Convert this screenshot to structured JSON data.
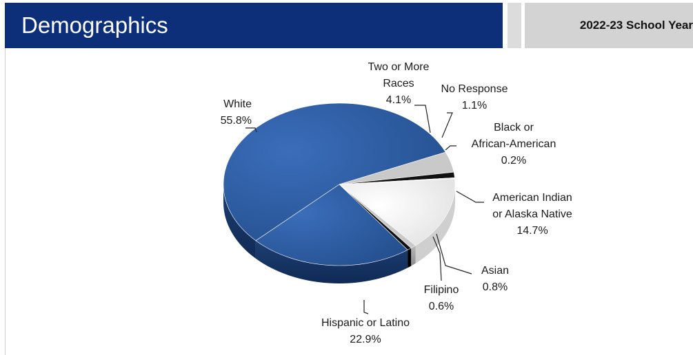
{
  "header": {
    "title": "Demographics",
    "year": "2022-23 School Year"
  },
  "chart_data": {
    "type": "pie",
    "title": "",
    "slices": [
      {
        "label": "American Indian or Alaska Native",
        "value": 14.7,
        "display": "14.7%",
        "color": "#f5f5f5"
      },
      {
        "label": "Asian",
        "value": 0.8,
        "display": "0.8%",
        "color": "#c9c9c9"
      },
      {
        "label": "Filipino",
        "value": 0.6,
        "display": "0.6%",
        "color": "#111111"
      },
      {
        "label": "Hispanic or Latino",
        "value": 22.9,
        "display": "22.9%",
        "color": "#2f5fa8"
      },
      {
        "label": "White",
        "value": 55.8,
        "display": "55.8%",
        "color": "#2f5fa8"
      },
      {
        "label": "Two or More Races",
        "value": 4.1,
        "display": "4.1%",
        "color": "#c9c9c9"
      },
      {
        "label": "No Response",
        "value": 1.1,
        "display": "1.1%",
        "color": "#111111"
      },
      {
        "label": "Black or African-American",
        "value": 0.2,
        "display": "0.2%",
        "color": "#f5f5f5"
      }
    ],
    "legend": "none"
  },
  "labels": {
    "white": [
      "White",
      "55.8%"
    ],
    "two_or_more": [
      "Two or More",
      "Races",
      "4.1%"
    ],
    "no_response": [
      "No Response",
      "1.1%"
    ],
    "black": [
      "Black or",
      "African-American",
      "0.2%"
    ],
    "american_indian": [
      "American Indian",
      "or Alaska Native",
      "14.7%"
    ],
    "asian": [
      "Asian",
      "0.8%"
    ],
    "filipino": [
      "Filipino",
      "0.6%"
    ],
    "hispanic": [
      "Hispanic or Latino",
      "22.9%"
    ]
  },
  "colors": {
    "header_blue": "#0d2f7a",
    "header_gray": "#d3d3d3"
  }
}
